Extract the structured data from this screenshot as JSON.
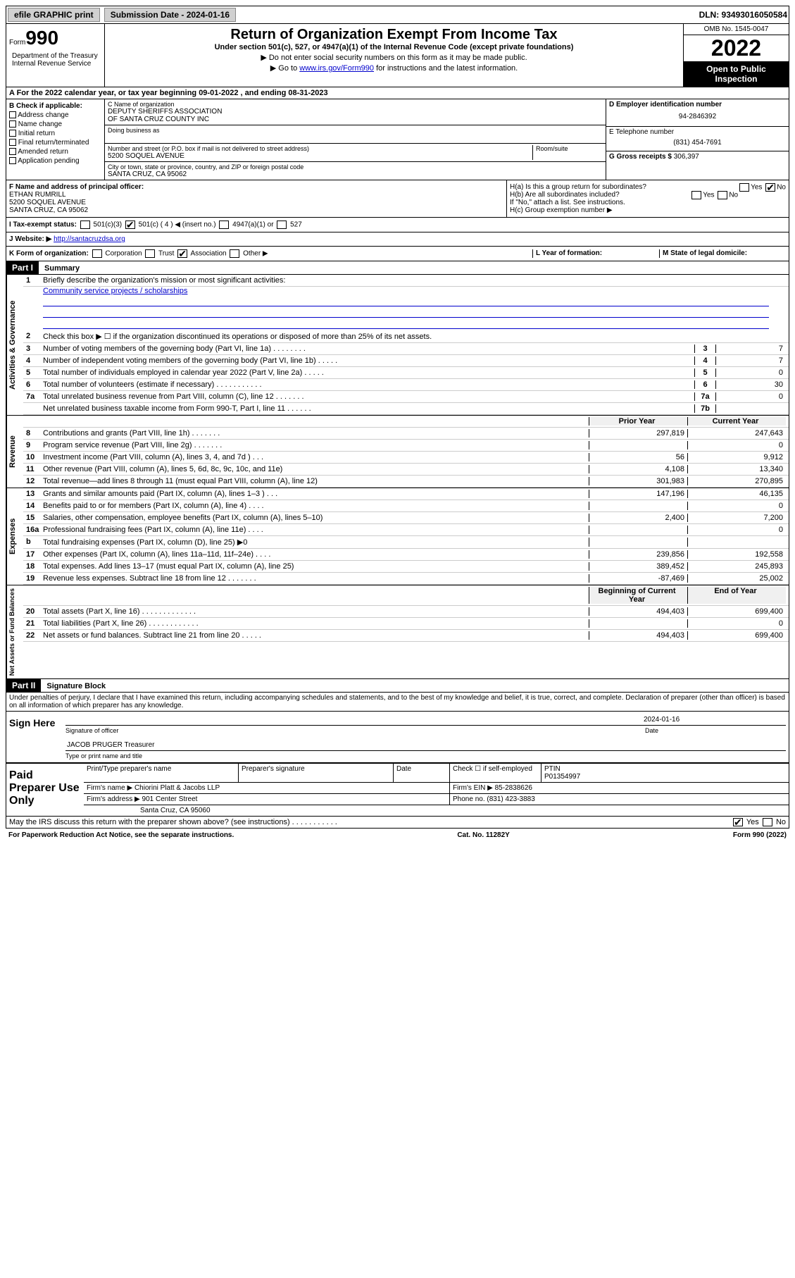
{
  "top": {
    "efile": "efile GRAPHIC print",
    "submission_label": "Submission Date - 2024-01-16",
    "dln": "DLN: 93493016050584"
  },
  "header": {
    "form_label": "Form",
    "form_number": "990",
    "title": "Return of Organization Exempt From Income Tax",
    "subtitle": "Under section 501(c), 527, or 4947(a)(1) of the Internal Revenue Code (except private foundations)",
    "note1": "▶ Do not enter social security numbers on this form as it may be made public.",
    "note2_pre": "▶ Go to ",
    "note2_link": "www.irs.gov/Form990",
    "note2_post": " for instructions and the latest information.",
    "omb": "OMB No. 1545-0047",
    "year": "2022",
    "open": "Open to Public Inspection",
    "dept": "Department of the Treasury Internal Revenue Service"
  },
  "section_a": "A For the 2022 calendar year, or tax year beginning 09-01-2022    , and ending 08-31-2023",
  "col_b": {
    "label": "B Check if applicable:",
    "items": [
      "Address change",
      "Name change",
      "Initial return",
      "Final return/terminated",
      "Amended return",
      "Application pending"
    ]
  },
  "col_c": {
    "name_label": "C Name of organization",
    "name1": "DEPUTY SHERIFFS ASSOCIATION",
    "name2": "OF SANTA CRUZ COUNTY INC",
    "dba": "Doing business as",
    "street_label": "Number and street (or P.O. box if mail is not delivered to street address)",
    "room_label": "Room/suite",
    "street": "5200 SOQUEL AVENUE",
    "city_label": "City or town, state or province, country, and ZIP or foreign postal code",
    "city": "SANTA CRUZ, CA  95062"
  },
  "col_d": {
    "ein_label": "D Employer identification number",
    "ein": "94-2846392",
    "phone_label": "E Telephone number",
    "phone": "(831) 454-7691",
    "gross_label": "G Gross receipts $",
    "gross": "306,397"
  },
  "row_f": {
    "label": "F  Name and address of principal officer:",
    "name": "ETHAN RUMRILL",
    "street": "5200 SOQUEL AVENUE",
    "city": "SANTA CRUZ, CA  95062"
  },
  "row_h": {
    "ha": "H(a)  Is this a group return for subordinates?",
    "hb": "H(b)  Are all subordinates included?",
    "hnote": "If \"No,\" attach a list. See instructions.",
    "hc": "H(c)  Group exemption number ▶"
  },
  "row_i": {
    "label": "I    Tax-exempt status:",
    "opts": [
      "501(c)(3)",
      "501(c) ( 4 ) ◀ (insert no.)",
      "4947(a)(1) or",
      "527"
    ]
  },
  "row_j": {
    "label": "J   Website: ▶",
    "url": "http://santacruzdsa.org"
  },
  "row_k": {
    "label": "K Form of organization:",
    "opts": [
      "Corporation",
      "Trust",
      "Association",
      "Other ▶"
    ],
    "l": "L Year of formation:",
    "m": "M State of legal domicile:"
  },
  "part1": {
    "hdr": "Part I",
    "title": "Summary",
    "l1": "Briefly describe the organization's mission or most significant activities:",
    "l1_text": "Community service projects / scholarships",
    "l2": "Check this box ▶ ☐  if the organization discontinued its operations or disposed of more than 25% of its net assets.",
    "lines_gov": [
      {
        "n": "3",
        "d": "Number of voting members of the governing body (Part VI, line 1a)   .    .    .    .    .    .    .    .",
        "b": "3",
        "v": "7"
      },
      {
        "n": "4",
        "d": "Number of independent voting members of the governing body (Part VI, line 1b)  .    .    .    .    .",
        "b": "4",
        "v": "7"
      },
      {
        "n": "5",
        "d": "Total number of individuals employed in calendar year 2022 (Part V, line 2a)   .    .    .    .    .",
        "b": "5",
        "v": "0"
      },
      {
        "n": "6",
        "d": "Total number of volunteers (estimate if necessary)  .    .    .    .    .    .    .    .    .    .    .",
        "b": "6",
        "v": "30"
      },
      {
        "n": "7a",
        "d": "Total unrelated business revenue from Part VIII, column (C), line 12  .    .    .    .    .    .    .",
        "b": "7a",
        "v": "0"
      },
      {
        "n": "",
        "d": "Net unrelated business taxable income from Form 990-T, Part I, line 11  .    .    .    .    .    .",
        "b": "7b",
        "v": ""
      }
    ],
    "col_hdr_prior": "Prior Year",
    "col_hdr_current": "Current Year",
    "lines_rev": [
      {
        "n": "8",
        "d": "Contributions and grants (Part VIII, line 1h)   .    .    .    .    .    .    .",
        "p": "297,819",
        "c": "247,643"
      },
      {
        "n": "9",
        "d": "Program service revenue (Part VIII, line 2g)   .    .    .    .    .    .    .",
        "p": "",
        "c": "0"
      },
      {
        "n": "10",
        "d": "Investment income (Part VIII, column (A), lines 3, 4, and 7d )   .    .    .",
        "p": "56",
        "c": "9,912"
      },
      {
        "n": "11",
        "d": "Other revenue (Part VIII, column (A), lines 5, 6d, 8c, 9c, 10c, and 11e)",
        "p": "4,108",
        "c": "13,340"
      },
      {
        "n": "12",
        "d": "Total revenue—add lines 8 through 11 (must equal Part VIII, column (A), line 12)",
        "p": "301,983",
        "c": "270,895"
      }
    ],
    "lines_exp": [
      {
        "n": "13",
        "d": "Grants and similar amounts paid (Part IX, column (A), lines 1–3 )   .    .    .",
        "p": "147,196",
        "c": "46,135"
      },
      {
        "n": "14",
        "d": "Benefits paid to or for members (Part IX, column (A), line 4)   .    .    .    .",
        "p": "",
        "c": "0"
      },
      {
        "n": "15",
        "d": "Salaries, other compensation, employee benefits (Part IX, column (A), lines 5–10)",
        "p": "2,400",
        "c": "7,200"
      },
      {
        "n": "16a",
        "d": "Professional fundraising fees (Part IX, column (A), line 11e)   .    .    .    .",
        "p": "",
        "c": "0"
      },
      {
        "n": "b",
        "d": "Total fundraising expenses (Part IX, column (D), line 25) ▶0",
        "p": "",
        "c": ""
      },
      {
        "n": "17",
        "d": "Other expenses (Part IX, column (A), lines 11a–11d, 11f–24e)   .    .    .    .",
        "p": "239,856",
        "c": "192,558"
      },
      {
        "n": "18",
        "d": "Total expenses. Add lines 13–17 (must equal Part IX, column (A), line 25)",
        "p": "389,452",
        "c": "245,893"
      },
      {
        "n": "19",
        "d": "Revenue less expenses. Subtract line 18 from line 12  .    .    .    .    .    .    .",
        "p": "-87,469",
        "c": "25,002"
      }
    ],
    "col_hdr_begin": "Beginning of Current Year",
    "col_hdr_end": "End of Year",
    "lines_net": [
      {
        "n": "20",
        "d": "Total assets (Part X, line 16)  .    .    .    .    .    .    .    .    .    .    .    .    .",
        "p": "494,403",
        "c": "699,400"
      },
      {
        "n": "21",
        "d": "Total liabilities (Part X, line 26)  .    .    .    .    .    .    .    .    .    .    .    .",
        "p": "",
        "c": "0"
      },
      {
        "n": "22",
        "d": "Net assets or fund balances. Subtract line 21 from line 20  .    .    .    .    .",
        "p": "494,403",
        "c": "699,400"
      }
    ]
  },
  "part2": {
    "hdr": "Part II",
    "title": "Signature Block",
    "decl": "Under penalties of perjury, I declare that I have examined this return, including accompanying schedules and statements, and to the best of my knowledge and belief, it is true, correct, and complete. Declaration of preparer (other than officer) is based on all information of which preparer has any knowledge.",
    "sign_here": "Sign Here",
    "sig_officer": "Signature of officer",
    "sig_date": "2024-01-16",
    "date_label": "Date",
    "officer_name": "JACOB PRUGER Treasurer",
    "type_name": "Type or print name and title",
    "paid": "Paid Preparer Use Only",
    "prep_name_label": "Print/Type preparer's name",
    "prep_sig_label": "Preparer's signature",
    "prep_date_label": "Date",
    "prep_check": "Check ☐ if self-employed",
    "ptin_label": "PTIN",
    "ptin": "P01354997",
    "firm_name_label": "Firm's name      ▶",
    "firm_name": "Chiorini Platt & Jacobs LLP",
    "firm_ein_label": "Firm's EIN ▶",
    "firm_ein": "85-2838626",
    "firm_addr_label": "Firm's address ▶",
    "firm_addr1": "901 Center Street",
    "firm_addr2": "Santa Cruz, CA  95060",
    "firm_phone_label": "Phone no.",
    "firm_phone": "(831) 423-3883",
    "may_irs": "May the IRS discuss this return with the preparer shown above? (see instructions)   .    .    .    .    .    .    .    .    .    .    .",
    "yes": "Yes",
    "no": "No"
  },
  "footer": {
    "left": "For Paperwork Reduction Act Notice, see the separate instructions.",
    "center": "Cat. No. 11282Y",
    "right": "Form 990 (2022)"
  }
}
